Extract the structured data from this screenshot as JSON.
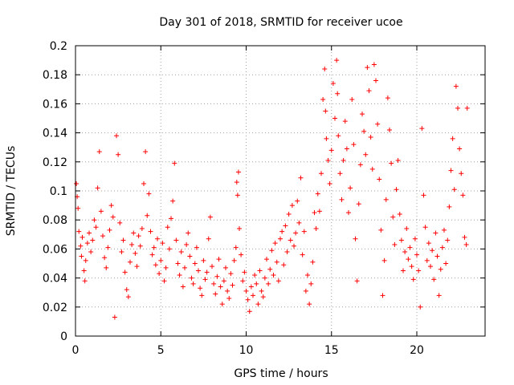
{
  "chart_data": {
    "type": "scatter",
    "title": "Day 301 of 2018, SRMTID for receiver ucoe",
    "xlabel": "GPS time / hours",
    "ylabel": "SRMTID / TECUs",
    "xlim": [
      0,
      24
    ],
    "ylim": [
      0,
      0.2
    ],
    "x_ticks": [
      0,
      5,
      10,
      15,
      20
    ],
    "x_tick_labels": [
      "0",
      "5",
      "10",
      "15",
      "20"
    ],
    "y_ticks": [
      0,
      0.02,
      0.04,
      0.06,
      0.08,
      0.1,
      0.12,
      0.14,
      0.16,
      0.18,
      0.2
    ],
    "y_tick_labels": [
      "0",
      "0.02",
      "0.04",
      "0.06",
      "0.08",
      "0.1",
      "0.12",
      "0.14",
      "0.16",
      "0.18",
      "0.2"
    ],
    "grid": true,
    "marker": "plus",
    "color": "#ff0000",
    "series": [
      {
        "name": "SRMTID",
        "points": [
          [
            0.05,
            0.105
          ],
          [
            0.1,
            0.096
          ],
          [
            0.15,
            0.088
          ],
          [
            0.2,
            0.072
          ],
          [
            0.3,
            0.062
          ],
          [
            0.35,
            0.055
          ],
          [
            0.4,
            0.068
          ],
          [
            0.5,
            0.045
          ],
          [
            0.55,
            0.038
          ],
          [
            0.6,
            0.052
          ],
          [
            0.7,
            0.064
          ],
          [
            0.8,
            0.071
          ],
          [
            0.9,
            0.058
          ],
          [
            1.0,
            0.066
          ],
          [
            1.1,
            0.08
          ],
          [
            1.2,
            0.075
          ],
          [
            1.3,
            0.102
          ],
          [
            1.4,
            0.127
          ],
          [
            1.5,
            0.086
          ],
          [
            1.6,
            0.069
          ],
          [
            1.7,
            0.054
          ],
          [
            1.8,
            0.047
          ],
          [
            1.9,
            0.061
          ],
          [
            2.0,
            0.073
          ],
          [
            2.1,
            0.09
          ],
          [
            2.2,
            0.082
          ],
          [
            2.3,
            0.013
          ],
          [
            2.4,
            0.138
          ],
          [
            2.5,
            0.125
          ],
          [
            2.6,
            0.078
          ],
          [
            2.7,
            0.058
          ],
          [
            2.8,
            0.066
          ],
          [
            2.9,
            0.044
          ],
          [
            3.0,
            0.032
          ],
          [
            3.1,
            0.027
          ],
          [
            3.2,
            0.051
          ],
          [
            3.3,
            0.063
          ],
          [
            3.4,
            0.071
          ],
          [
            3.5,
            0.057
          ],
          [
            3.6,
            0.048
          ],
          [
            3.7,
            0.069
          ],
          [
            3.8,
            0.062
          ],
          [
            3.9,
            0.074
          ],
          [
            4.0,
            0.105
          ],
          [
            4.1,
            0.127
          ],
          [
            4.2,
            0.083
          ],
          [
            4.3,
            0.098
          ],
          [
            4.4,
            0.072
          ],
          [
            4.5,
            0.056
          ],
          [
            4.6,
            0.061
          ],
          [
            4.7,
            0.049
          ],
          [
            4.8,
            0.067
          ],
          [
            4.9,
            0.043
          ],
          [
            5.0,
            0.052
          ],
          [
            5.1,
            0.064
          ],
          [
            5.2,
            0.038
          ],
          [
            5.3,
            0.047
          ],
          [
            5.4,
            0.075
          ],
          [
            5.5,
            0.06
          ],
          [
            5.6,
            0.081
          ],
          [
            5.7,
            0.093
          ],
          [
            5.8,
            0.119
          ],
          [
            5.9,
            0.066
          ],
          [
            6.0,
            0.05
          ],
          [
            6.1,
            0.042
          ],
          [
            6.2,
            0.058
          ],
          [
            6.3,
            0.034
          ],
          [
            6.4,
            0.047
          ],
          [
            6.5,
            0.063
          ],
          [
            6.6,
            0.071
          ],
          [
            6.7,
            0.055
          ],
          [
            6.8,
            0.04
          ],
          [
            6.9,
            0.036
          ],
          [
            7.0,
            0.05
          ],
          [
            7.1,
            0.061
          ],
          [
            7.2,
            0.045
          ],
          [
            7.3,
            0.033
          ],
          [
            7.4,
            0.028
          ],
          [
            7.5,
            0.052
          ],
          [
            7.6,
            0.039
          ],
          [
            7.7,
            0.044
          ],
          [
            7.8,
            0.067
          ],
          [
            7.9,
            0.082
          ],
          [
            8.0,
            0.048
          ],
          [
            8.1,
            0.036
          ],
          [
            8.2,
            0.029
          ],
          [
            8.3,
            0.041
          ],
          [
            8.4,
            0.053
          ],
          [
            8.5,
            0.034
          ],
          [
            8.6,
            0.022
          ],
          [
            8.7,
            0.038
          ],
          [
            8.8,
            0.047
          ],
          [
            8.9,
            0.031
          ],
          [
            9.0,
            0.026
          ],
          [
            9.1,
            0.043
          ],
          [
            9.2,
            0.035
          ],
          [
            9.3,
            0.052
          ],
          [
            9.4,
            0.061
          ],
          [
            9.45,
            0.106
          ],
          [
            9.5,
            0.097
          ],
          [
            9.55,
            0.113
          ],
          [
            9.6,
            0.074
          ],
          [
            9.7,
            0.056
          ],
          [
            9.8,
            0.038
          ],
          [
            9.9,
            0.044
          ],
          [
            10.0,
            0.031
          ],
          [
            10.1,
            0.025
          ],
          [
            10.2,
            0.017
          ],
          [
            10.3,
            0.034
          ],
          [
            10.4,
            0.028
          ],
          [
            10.5,
            0.042
          ],
          [
            10.6,
            0.036
          ],
          [
            10.7,
            0.022
          ],
          [
            10.8,
            0.045
          ],
          [
            10.9,
            0.031
          ],
          [
            11.0,
            0.027
          ],
          [
            11.1,
            0.04
          ],
          [
            11.2,
            0.053
          ],
          [
            11.3,
            0.036
          ],
          [
            11.4,
            0.046
          ],
          [
            11.5,
            0.059
          ],
          [
            11.6,
            0.042
          ],
          [
            11.7,
            0.064
          ],
          [
            11.8,
            0.051
          ],
          [
            11.9,
            0.038
          ],
          [
            12.0,
            0.067
          ],
          [
            12.1,
            0.072
          ],
          [
            12.2,
            0.049
          ],
          [
            12.3,
            0.076
          ],
          [
            12.4,
            0.058
          ],
          [
            12.5,
            0.084
          ],
          [
            12.6,
            0.066
          ],
          [
            12.7,
            0.09
          ],
          [
            12.8,
            0.062
          ],
          [
            12.9,
            0.071
          ],
          [
            13.0,
            0.093
          ],
          [
            13.1,
            0.078
          ],
          [
            13.2,
            0.109
          ],
          [
            13.3,
            0.056
          ],
          [
            13.4,
            0.072
          ],
          [
            13.5,
            0.031
          ],
          [
            13.6,
            0.042
          ],
          [
            13.7,
            0.022
          ],
          [
            13.8,
            0.036
          ],
          [
            13.9,
            0.051
          ],
          [
            14.0,
            0.085
          ],
          [
            14.1,
            0.074
          ],
          [
            14.2,
            0.098
          ],
          [
            14.3,
            0.086
          ],
          [
            14.4,
            0.112
          ],
          [
            14.5,
            0.163
          ],
          [
            14.6,
            0.184
          ],
          [
            14.65,
            0.155
          ],
          [
            14.7,
            0.136
          ],
          [
            14.8,
            0.121
          ],
          [
            14.9,
            0.105
          ],
          [
            15.0,
            0.128
          ],
          [
            15.1,
            0.174
          ],
          [
            15.2,
            0.15
          ],
          [
            15.3,
            0.19
          ],
          [
            15.35,
            0.167
          ],
          [
            15.4,
            0.138
          ],
          [
            15.5,
            0.112
          ],
          [
            15.6,
            0.094
          ],
          [
            15.7,
            0.121
          ],
          [
            15.8,
            0.148
          ],
          [
            15.9,
            0.129
          ],
          [
            16.0,
            0.085
          ],
          [
            16.1,
            0.102
          ],
          [
            16.2,
            0.163
          ],
          [
            16.3,
            0.132
          ],
          [
            16.4,
            0.067
          ],
          [
            16.5,
            0.038
          ],
          [
            16.6,
            0.091
          ],
          [
            16.7,
            0.118
          ],
          [
            16.8,
            0.153
          ],
          [
            16.9,
            0.141
          ],
          [
            17.0,
            0.125
          ],
          [
            17.1,
            0.185
          ],
          [
            17.2,
            0.169
          ],
          [
            17.3,
            0.137
          ],
          [
            17.4,
            0.115
          ],
          [
            17.5,
            0.187
          ],
          [
            17.6,
            0.176
          ],
          [
            17.7,
            0.146
          ],
          [
            17.8,
            0.108
          ],
          [
            17.9,
            0.073
          ],
          [
            18.0,
            0.028
          ],
          [
            18.1,
            0.052
          ],
          [
            18.2,
            0.094
          ],
          [
            18.3,
            0.164
          ],
          [
            18.4,
            0.142
          ],
          [
            18.5,
            0.119
          ],
          [
            18.6,
            0.082
          ],
          [
            18.7,
            0.063
          ],
          [
            18.8,
            0.101
          ],
          [
            18.9,
            0.121
          ],
          [
            19.0,
            0.084
          ],
          [
            19.1,
            0.066
          ],
          [
            19.2,
            0.045
          ],
          [
            19.3,
            0.058
          ],
          [
            19.4,
            0.074
          ],
          [
            19.5,
            0.053
          ],
          [
            19.6,
            0.061
          ],
          [
            19.7,
            0.048
          ],
          [
            19.8,
            0.039
          ],
          [
            19.9,
            0.067
          ],
          [
            20.0,
            0.056
          ],
          [
            20.1,
            0.045
          ],
          [
            20.2,
            0.02
          ],
          [
            20.3,
            0.143
          ],
          [
            20.4,
            0.097
          ],
          [
            20.5,
            0.075
          ],
          [
            20.6,
            0.052
          ],
          [
            20.7,
            0.064
          ],
          [
            20.8,
            0.048
          ],
          [
            20.9,
            0.059
          ],
          [
            21.0,
            0.039
          ],
          [
            21.1,
            0.071
          ],
          [
            21.2,
            0.055
          ],
          [
            21.3,
            0.028
          ],
          [
            21.4,
            0.046
          ],
          [
            21.5,
            0.061
          ],
          [
            21.6,
            0.073
          ],
          [
            21.7,
            0.05
          ],
          [
            21.8,
            0.066
          ],
          [
            21.9,
            0.089
          ],
          [
            22.0,
            0.114
          ],
          [
            22.1,
            0.136
          ],
          [
            22.2,
            0.101
          ],
          [
            22.3,
            0.172
          ],
          [
            22.4,
            0.157
          ],
          [
            22.5,
            0.129
          ],
          [
            22.6,
            0.112
          ],
          [
            22.7,
            0.097
          ],
          [
            22.8,
            0.068
          ],
          [
            22.9,
            0.063
          ],
          [
            22.95,
            0.157
          ]
        ]
      }
    ]
  }
}
